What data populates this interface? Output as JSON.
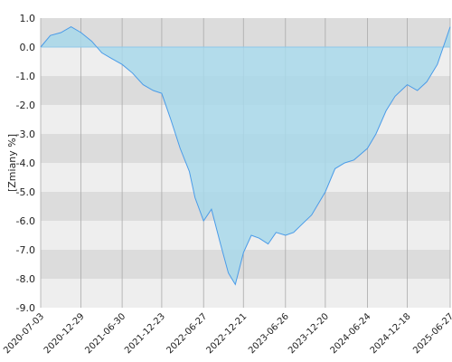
{
  "chart_data": {
    "type": "area",
    "title": "",
    "xlabel": "",
    "ylabel": "[Zmiany %]",
    "ylim": [
      -9.0,
      1.0
    ],
    "y_ticks": [
      "1.0",
      "0.0",
      "-1.0",
      "-2.0",
      "-3.0",
      "-4.0",
      "-5.0",
      "-6.0",
      "-7.0",
      "-8.0",
      "-9.0"
    ],
    "x_ticks": [
      "2020-07-03",
      "2020-12-29",
      "2021-06-30",
      "2021-12-23",
      "2022-06-27",
      "2022-12-21",
      "2023-06-26",
      "2023-12-20",
      "2024-06-24",
      "2024-12-18",
      "2025-06-27"
    ],
    "grid": true,
    "legend": "none",
    "colors": {
      "line": "#4a9be8",
      "fill": "#a8d8ea",
      "band_dark": "#dcdcdc",
      "band_light": "#eeeeee",
      "zero_line": "#8fc8e8",
      "vgrid": "#aaaaaa"
    },
    "series": [
      {
        "x": [
          "2020-07-03",
          "2020-08-15",
          "2020-10-01",
          "2020-11-15",
          "2020-12-29",
          "2021-02-15",
          "2021-04-01",
          "2021-05-15",
          "2021-06-30",
          "2021-08-15",
          "2021-10-01",
          "2021-11-15",
          "2021-12-23",
          "2022-02-01",
          "2022-03-15",
          "2022-04-25",
          "2022-05-20",
          "2022-06-27",
          "2022-08-01",
          "2022-09-10",
          "2022-10-15",
          "2022-11-15",
          "2022-12-21",
          "2023-01-25",
          "2023-03-01",
          "2023-04-10",
          "2023-05-15",
          "2023-06-26",
          "2023-08-01",
          "2023-09-10",
          "2023-10-20",
          "2023-12-20",
          "2024-02-01",
          "2024-03-15",
          "2024-04-25",
          "2024-06-24",
          "2024-08-01",
          "2024-09-15",
          "2024-10-25",
          "2024-12-18",
          "2025-02-01",
          "2025-03-15",
          "2025-05-01",
          "2025-06-27"
        ],
        "values": [
          0.0,
          0.4,
          0.5,
          0.7,
          0.5,
          0.2,
          -0.2,
          -0.4,
          -0.6,
          -0.9,
          -1.3,
          -1.5,
          -1.6,
          -2.5,
          -3.5,
          -4.3,
          -5.2,
          -6.0,
          -5.6,
          -6.8,
          -7.8,
          -8.2,
          -7.1,
          -6.5,
          -6.6,
          -6.8,
          -6.4,
          -6.5,
          -6.4,
          -6.1,
          -5.8,
          -5.0,
          -4.2,
          -4.0,
          -3.9,
          -3.5,
          -3.0,
          -2.2,
          -1.7,
          -1.3,
          -1.5,
          -1.2,
          -0.6,
          0.7
        ]
      }
    ]
  }
}
